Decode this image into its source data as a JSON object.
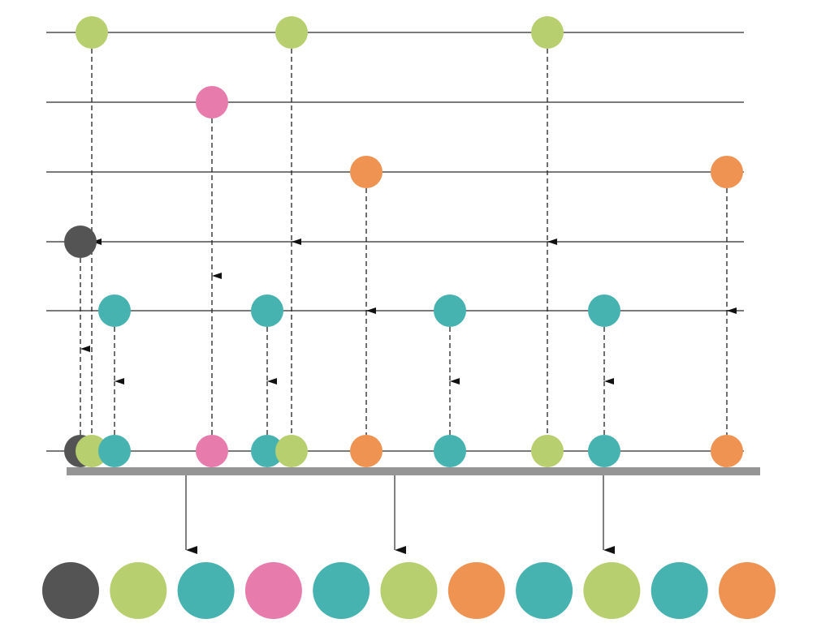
{
  "colors": {
    "green": "#b7cf6e",
    "pink": "#e77bab",
    "orange": "#ef9352",
    "dark": "#545454",
    "teal": "#47b3b0",
    "line": "#7a7a7a",
    "bar": "#959595"
  },
  "input_streams": [
    {
      "marbles": [
        "green",
        "green",
        "green"
      ]
    },
    {
      "marbles": [
        "pink"
      ]
    },
    {
      "marbles": [
        "orange",
        "orange"
      ]
    },
    {
      "marbles": [
        "dark"
      ]
    },
    {
      "marbles": [
        "teal",
        "teal",
        "teal",
        "teal"
      ]
    }
  ],
  "merged_stream": {
    "marbles": [
      "dark",
      "green",
      "teal",
      "pink",
      "teal",
      "green",
      "orange",
      "teal",
      "green",
      "teal",
      "orange"
    ]
  },
  "output_sequence": [
    "dark",
    "green",
    "teal",
    "pink",
    "teal",
    "green",
    "orange",
    "teal",
    "green",
    "teal",
    "orange"
  ]
}
